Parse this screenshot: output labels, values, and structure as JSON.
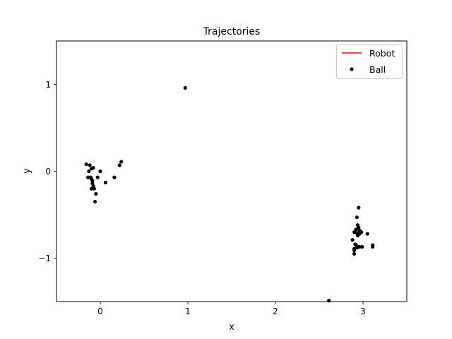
{
  "chart_data": {
    "type": "scatter",
    "title": "Trajectories",
    "xlabel": "x",
    "ylabel": "y",
    "xlim": [
      -0.5,
      3.5
    ],
    "ylim": [
      -1.5,
      1.5
    ],
    "xticks": [
      0,
      1,
      2,
      3
    ],
    "xtick_labels": [
      "0",
      "1",
      "2",
      "3"
    ],
    "yticks": [
      -1,
      0,
      1
    ],
    "ytick_labels": [
      "−1",
      "0",
      "1"
    ],
    "grid": false,
    "legend": {
      "placement": "top-right",
      "entries": [
        {
          "label": "Robot",
          "marker": "line",
          "color": "#ff0000"
        },
        {
          "label": "Ball",
          "marker": "dot",
          "color": "#000000"
        }
      ]
    },
    "series": [
      {
        "name": "Robot",
        "kind": "line",
        "color": "#ff0000",
        "x": [],
        "y": []
      },
      {
        "name": "Ball",
        "kind": "scatter",
        "color": "#000000",
        "points": [
          [
            -0.16,
            0.08
          ],
          [
            -0.12,
            0.07
          ],
          [
            -0.13,
            0.0
          ],
          [
            -0.1,
            0.03
          ],
          [
            -0.08,
            0.04
          ],
          [
            -0.14,
            -0.07
          ],
          [
            -0.11,
            -0.07
          ],
          [
            -0.1,
            -0.09
          ],
          [
            -0.09,
            -0.11
          ],
          [
            -0.09,
            -0.14
          ],
          [
            -0.08,
            -0.17
          ],
          [
            -0.1,
            -0.2
          ],
          [
            -0.07,
            -0.2
          ],
          [
            -0.05,
            -0.26
          ],
          [
            -0.06,
            -0.35
          ],
          [
            -0.03,
            -0.07
          ],
          [
            0.0,
            0.0
          ],
          [
            0.06,
            -0.13
          ],
          [
            0.16,
            -0.07
          ],
          [
            0.22,
            0.07
          ],
          [
            0.24,
            0.11
          ],
          [
            0.97,
            0.96
          ],
          [
            2.61,
            -1.49
          ],
          [
            2.95,
            -0.42
          ],
          [
            2.93,
            -0.53
          ],
          [
            2.94,
            -0.62
          ],
          [
            2.95,
            -0.65
          ],
          [
            2.92,
            -0.67
          ],
          [
            2.96,
            -0.68
          ],
          [
            2.98,
            -0.7
          ],
          [
            2.9,
            -0.7
          ],
          [
            2.93,
            -0.71
          ],
          [
            2.96,
            -0.72
          ],
          [
            2.94,
            -0.74
          ],
          [
            3.05,
            -0.72
          ],
          [
            2.88,
            -0.79
          ],
          [
            2.91,
            -0.84
          ],
          [
            2.93,
            -0.86
          ],
          [
            2.9,
            -0.89
          ],
          [
            2.93,
            -0.88
          ],
          [
            2.96,
            -0.87
          ],
          [
            2.99,
            -0.87
          ],
          [
            2.9,
            -0.91
          ],
          [
            2.9,
            -0.95
          ],
          [
            3.11,
            -0.85
          ],
          [
            3.11,
            -0.87
          ]
        ]
      }
    ]
  }
}
